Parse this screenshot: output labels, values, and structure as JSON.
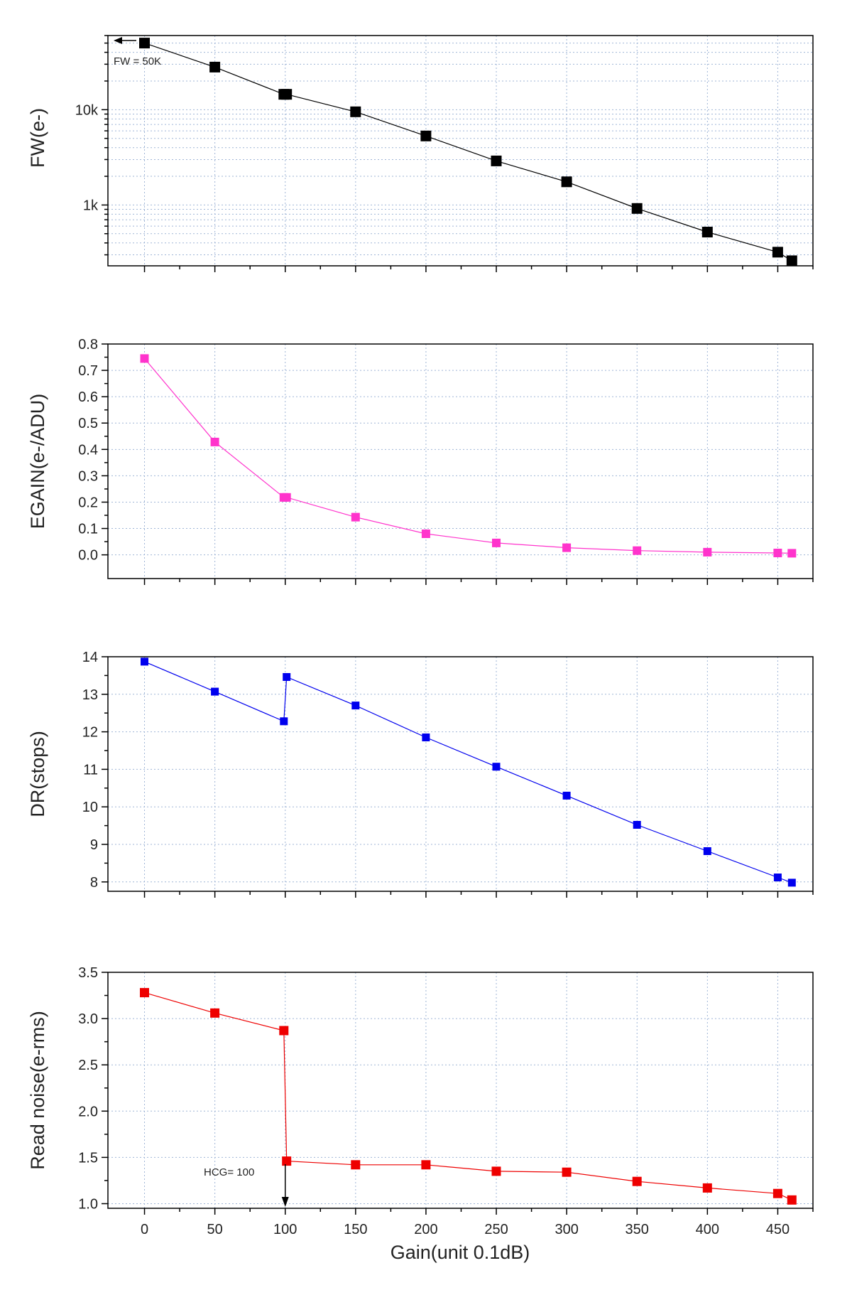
{
  "colors": {
    "grid": "#9fb5d6",
    "axis": "#000000",
    "fw": "#000000",
    "egain": "#ff33cc",
    "dr": "#0000ee",
    "noise": "#ee0000"
  },
  "chart_data": [
    {
      "type": "line",
      "scale": "log",
      "ylabel": "FW(e-)",
      "ylim": [
        230,
        60000
      ],
      "yticks": [
        {
          "v": 1000,
          "label": "1k"
        },
        {
          "v": 10000,
          "label": "10k"
        }
      ],
      "x": [
        0,
        50,
        99,
        101,
        150,
        200,
        250,
        300,
        350,
        400,
        450,
        460
      ],
      "values": [
        50000,
        28000,
        14500,
        14500,
        9500,
        5300,
        2900,
        1750,
        920,
        520,
        320,
        260
      ],
      "series_color": "fw",
      "marker_size": 15,
      "grid": true,
      "annotation": {
        "text": "FW = 50K"
      }
    },
    {
      "type": "line",
      "scale": "linear",
      "ylabel": "EGAIN(e-/ADU)",
      "ylim": [
        -0.09,
        0.8
      ],
      "yticks": [
        {
          "v": 0.0,
          "label": "0.0"
        },
        {
          "v": 0.1,
          "label": "0.1"
        },
        {
          "v": 0.2,
          "label": "0.2"
        },
        {
          "v": 0.3,
          "label": "0.3"
        },
        {
          "v": 0.4,
          "label": "0.4"
        },
        {
          "v": 0.5,
          "label": "0.5"
        },
        {
          "v": 0.6,
          "label": "0.6"
        },
        {
          "v": 0.7,
          "label": "0.7"
        },
        {
          "v": 0.8,
          "label": "0.8"
        }
      ],
      "x": [
        0,
        50,
        99,
        101,
        150,
        200,
        250,
        300,
        350,
        400,
        450,
        460
      ],
      "values": [
        0.745,
        0.428,
        0.218,
        0.218,
        0.143,
        0.08,
        0.045,
        0.027,
        0.016,
        0.01,
        0.007,
        0.006
      ],
      "series_color": "egain",
      "marker_size": 12,
      "grid": true
    },
    {
      "type": "line",
      "scale": "linear",
      "ylabel": "DR(stops)",
      "ylim": [
        7.75,
        14
      ],
      "yticks": [
        {
          "v": 8,
          "label": "8"
        },
        {
          "v": 9,
          "label": "9"
        },
        {
          "v": 10,
          "label": "10"
        },
        {
          "v": 11,
          "label": "11"
        },
        {
          "v": 12,
          "label": "12"
        },
        {
          "v": 13,
          "label": "13"
        },
        {
          "v": 14,
          "label": "14"
        }
      ],
      "x": [
        0,
        50,
        99,
        101,
        150,
        200,
        250,
        300,
        350,
        400,
        450,
        460
      ],
      "values": [
        13.87,
        13.07,
        12.28,
        13.46,
        12.7,
        11.85,
        11.07,
        10.3,
        9.52,
        8.82,
        8.12,
        7.98
      ],
      "series_color": "dr",
      "marker_size": 11,
      "grid": true
    },
    {
      "type": "line",
      "scale": "linear",
      "ylabel": "Read noise(e-rms)",
      "ylim": [
        0.95,
        3.5
      ],
      "yticks": [
        {
          "v": 1.0,
          "label": "1.0"
        },
        {
          "v": 1.5,
          "label": "1.5"
        },
        {
          "v": 2.0,
          "label": "2.0"
        },
        {
          "v": 2.5,
          "label": "2.5"
        },
        {
          "v": 3.0,
          "label": "3.0"
        },
        {
          "v": 3.5,
          "label": "3.5"
        }
      ],
      "x": [
        0,
        50,
        99,
        101,
        150,
        200,
        250,
        300,
        350,
        400,
        450,
        460
      ],
      "values": [
        3.28,
        3.06,
        2.87,
        1.46,
        1.42,
        1.42,
        1.35,
        1.34,
        1.24,
        1.17,
        1.11,
        1.04
      ],
      "series_color": "noise",
      "marker_size": 13,
      "grid": true,
      "annotation": {
        "text": "HCG= 100",
        "x": 100
      }
    }
  ],
  "x_axis": {
    "label": "Gain(unit 0.1dB)",
    "ticks": [
      0,
      50,
      100,
      150,
      200,
      250,
      300,
      350,
      400,
      450
    ],
    "xlim": [
      -26,
      475
    ]
  }
}
